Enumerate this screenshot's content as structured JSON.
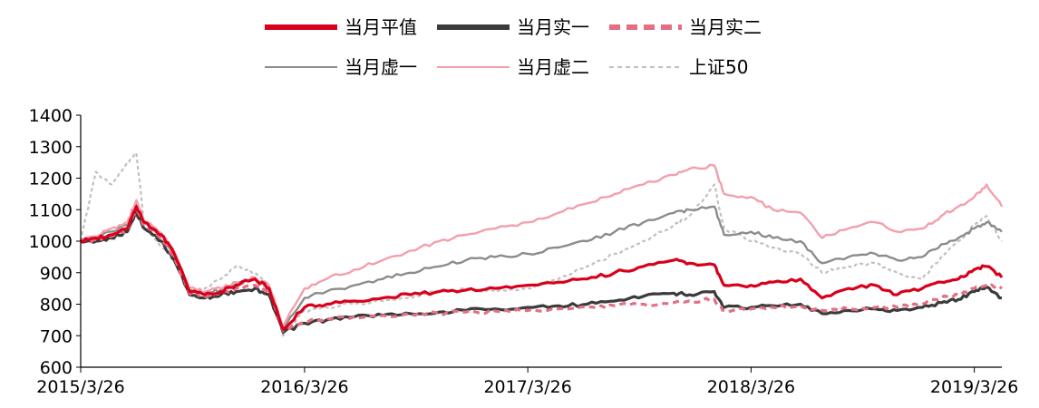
{
  "chart_data": {
    "type": "line",
    "title": "",
    "xlabel": "",
    "ylabel": "",
    "ylim": [
      600,
      1400
    ],
    "yticks": [
      600,
      700,
      800,
      900,
      1000,
      1100,
      1200,
      1300,
      1400
    ],
    "xlim": [
      "2015/3/26",
      "2019/5/10"
    ],
    "xtick_labels": [
      "2015/3/26",
      "2016/3/26",
      "2017/3/26",
      "2018/3/26",
      "2019/3/26"
    ],
    "legend_position": "top-center",
    "grid": false,
    "series": [
      {
        "name": "当月平值",
        "color": "#d9001b",
        "style": "solid-thick",
        "x": [
          "2015/3/26",
          "2015/4/20",
          "2015/5/15",
          "2015/6/10",
          "2015/6/25",
          "2015/7/8",
          "2015/8/5",
          "2015/8/26",
          "2015/9/20",
          "2015/10/15",
          "2015/11/10",
          "2015/12/5",
          "2016/1/5",
          "2016/1/28",
          "2016/2/20",
          "2016/3/26",
          "2016/5/1",
          "2016/6/15",
          "2016/8/1",
          "2016/9/15",
          "2016/11/1",
          "2016/12/15",
          "2017/2/1",
          "2017/3/26",
          "2017/5/15",
          "2017/7/1",
          "2017/8/15",
          "2017/10/1",
          "2017/11/20",
          "2017/12/15",
          "2018/1/25",
          "2018/2/10",
          "2018/3/26",
          "2018/5/1",
          "2018/6/15",
          "2018/7/20",
          "2018/9/1",
          "2018/10/15",
          "2018/11/20",
          "2018/12/31",
          "2019/1/31",
          "2019/2/28",
          "2019/3/26",
          "2019/4/15",
          "2019/5/10"
        ],
        "values": [
          1000,
          1010,
          1020,
          1040,
          1110,
          1060,
          1020,
          960,
          840,
          830,
          840,
          860,
          880,
          850,
          720,
          790,
          800,
          810,
          820,
          830,
          840,
          845,
          850,
          860,
          870,
          880,
          900,
          920,
          940,
          930,
          925,
          860,
          860,
          870,
          880,
          820,
          850,
          860,
          830,
          850,
          870,
          880,
          910,
          920,
          885
        ]
      },
      {
        "name": "当月实一",
        "color": "#3b3b3b",
        "style": "solid-thick",
        "x": [
          "2015/3/26",
          "2015/4/20",
          "2015/5/15",
          "2015/6/10",
          "2015/6/25",
          "2015/7/8",
          "2015/8/5",
          "2015/8/26",
          "2015/9/20",
          "2015/10/15",
          "2015/11/10",
          "2015/12/5",
          "2016/1/5",
          "2016/1/28",
          "2016/2/20",
          "2016/3/26",
          "2016/5/1",
          "2016/6/15",
          "2016/8/1",
          "2016/9/15",
          "2016/11/1",
          "2016/12/15",
          "2017/2/1",
          "2017/3/26",
          "2017/5/15",
          "2017/7/1",
          "2017/8/15",
          "2017/10/1",
          "2017/11/20",
          "2017/12/15",
          "2018/1/25",
          "2018/2/10",
          "2018/3/26",
          "2018/5/1",
          "2018/6/15",
          "2018/7/20",
          "2018/9/1",
          "2018/10/15",
          "2018/11/20",
          "2018/12/31",
          "2019/1/31",
          "2019/2/28",
          "2019/3/26",
          "2019/4/15",
          "2019/5/10"
        ],
        "values": [
          1000,
          1000,
          1010,
          1030,
          1090,
          1040,
          1000,
          940,
          830,
          820,
          830,
          840,
          850,
          830,
          710,
          740,
          750,
          760,
          765,
          770,
          775,
          780,
          785,
          790,
          795,
          800,
          810,
          825,
          835,
          830,
          840,
          790,
          790,
          795,
          800,
          770,
          780,
          785,
          780,
          790,
          805,
          815,
          840,
          855,
          820
        ]
      },
      {
        "name": "当月实二",
        "color": "#e36f84",
        "style": "dashed-thick",
        "x": [
          "2015/3/26",
          "2015/4/20",
          "2015/5/15",
          "2015/6/10",
          "2015/6/25",
          "2015/7/8",
          "2015/8/5",
          "2015/8/26",
          "2015/9/20",
          "2015/10/15",
          "2015/11/10",
          "2015/12/5",
          "2016/1/5",
          "2016/1/28",
          "2016/2/20",
          "2016/3/26",
          "2016/5/1",
          "2016/6/15",
          "2016/8/1",
          "2016/9/15",
          "2016/11/1",
          "2016/12/15",
          "2017/2/1",
          "2017/3/26",
          "2017/5/15",
          "2017/7/1",
          "2017/8/15",
          "2017/10/1",
          "2017/11/20",
          "2017/12/15",
          "2018/1/25",
          "2018/2/10",
          "2018/3/26",
          "2018/5/1",
          "2018/6/15",
          "2018/7/20",
          "2018/9/1",
          "2018/10/15",
          "2018/11/20",
          "2018/12/31",
          "2019/1/31",
          "2019/2/28",
          "2019/3/26",
          "2019/4/15",
          "2019/5/10"
        ],
        "values": [
          1000,
          1005,
          1015,
          1035,
          1100,
          1050,
          1010,
          950,
          835,
          825,
          835,
          850,
          860,
          840,
          715,
          745,
          755,
          760,
          765,
          768,
          772,
          775,
          778,
          780,
          785,
          790,
          795,
          800,
          805,
          810,
          815,
          780,
          785,
          790,
          795,
          780,
          785,
          790,
          790,
          800,
          820,
          830,
          850,
          860,
          850
        ]
      },
      {
        "name": "当月虚一",
        "color": "#8c8c8c",
        "style": "solid-thin",
        "x": [
          "2015/3/26",
          "2015/4/20",
          "2015/5/15",
          "2015/6/10",
          "2015/6/25",
          "2015/7/8",
          "2015/8/5",
          "2015/8/26",
          "2015/9/20",
          "2015/10/15",
          "2015/11/10",
          "2015/12/5",
          "2016/1/5",
          "2016/1/28",
          "2016/2/20",
          "2016/3/26",
          "2016/5/1",
          "2016/6/15",
          "2016/8/1",
          "2016/9/15",
          "2016/11/1",
          "2016/12/15",
          "2017/2/1",
          "2017/3/26",
          "2017/5/15",
          "2017/7/1",
          "2017/8/15",
          "2017/10/1",
          "2017/11/20",
          "2017/12/15",
          "2018/1/25",
          "2018/2/10",
          "2018/3/26",
          "2018/5/1",
          "2018/6/15",
          "2018/7/20",
          "2018/9/1",
          "2018/10/15",
          "2018/11/20",
          "2018/12/31",
          "2019/1/31",
          "2019/2/28",
          "2019/3/26",
          "2019/4/15",
          "2019/5/10"
        ],
        "values": [
          1000,
          1010,
          1030,
          1050,
          1120,
          1060,
          1020,
          960,
          845,
          835,
          845,
          865,
          880,
          855,
          725,
          820,
          840,
          860,
          880,
          900,
          920,
          940,
          950,
          960,
          980,
          1000,
          1030,
          1060,
          1090,
          1100,
          1110,
          1020,
          1030,
          1010,
          1000,
          930,
          950,
          960,
          940,
          950,
          990,
          1010,
          1040,
          1060,
          1030
        ]
      },
      {
        "name": "当月虚二",
        "color": "#f2a0ac",
        "style": "solid-thin",
        "x": [
          "2015/3/26",
          "2015/4/20",
          "2015/5/15",
          "2015/6/10",
          "2015/6/25",
          "2015/7/8",
          "2015/8/5",
          "2015/8/26",
          "2015/9/20",
          "2015/10/15",
          "2015/11/10",
          "2015/12/5",
          "2016/1/5",
          "2016/1/28",
          "2016/2/20",
          "2016/3/26",
          "2016/5/1",
          "2016/6/15",
          "2016/8/1",
          "2016/9/15",
          "2016/11/1",
          "2016/12/15",
          "2017/2/1",
          "2017/3/26",
          "2017/5/15",
          "2017/7/1",
          "2017/8/15",
          "2017/10/1",
          "2017/11/20",
          "2017/12/15",
          "2018/1/25",
          "2018/2/10",
          "2018/3/26",
          "2018/5/1",
          "2018/6/15",
          "2018/7/20",
          "2018/9/1",
          "2018/10/15",
          "2018/11/20",
          "2018/12/31",
          "2019/1/31",
          "2019/2/28",
          "2019/3/26",
          "2019/4/15",
          "2019/5/10"
        ],
        "values": [
          1000,
          1015,
          1040,
          1060,
          1130,
          1065,
          1025,
          965,
          850,
          840,
          850,
          870,
          885,
          860,
          730,
          850,
          880,
          910,
          940,
          970,
          1000,
          1020,
          1040,
          1060,
          1090,
          1120,
          1150,
          1180,
          1210,
          1230,
          1240,
          1150,
          1140,
          1100,
          1090,
          1010,
          1040,
          1060,
          1030,
          1040,
          1080,
          1110,
          1140,
          1180,
          1110
        ]
      },
      {
        "name": "上证50",
        "color": "#c0c0c0",
        "style": "dashed-thin",
        "x": [
          "2015/3/26",
          "2015/4/20",
          "2015/5/15",
          "2015/6/10",
          "2015/6/25",
          "2015/7/8",
          "2015/8/5",
          "2015/8/26",
          "2015/9/20",
          "2015/10/15",
          "2015/11/10",
          "2015/12/5",
          "2016/1/5",
          "2016/1/28",
          "2016/2/20",
          "2016/3/26",
          "2016/5/1",
          "2016/6/15",
          "2016/8/1",
          "2016/9/15",
          "2016/11/1",
          "2016/12/15",
          "2017/2/1",
          "2017/3/26",
          "2017/5/15",
          "2017/7/1",
          "2017/8/15",
          "2017/10/1",
          "2017/11/20",
          "2017/12/15",
          "2018/1/25",
          "2018/2/10",
          "2018/3/26",
          "2018/5/1",
          "2018/6/15",
          "2018/7/20",
          "2018/9/1",
          "2018/10/15",
          "2018/11/20",
          "2018/12/31",
          "2019/1/31",
          "2019/2/28",
          "2019/3/26",
          "2019/4/15",
          "2019/5/10"
        ],
        "values": [
          1000,
          1220,
          1180,
          1250,
          1280,
          1050,
          980,
          940,
          840,
          850,
          880,
          920,
          900,
          860,
          700,
          780,
          790,
          800,
          810,
          820,
          840,
          850,
          840,
          850,
          880,
          920,
          960,
          1000,
          1050,
          1080,
          1180,
          1040,
          1000,
          980,
          960,
          900,
          920,
          930,
          900,
          880,
          950,
          1000,
          1050,
          1080,
          1000
        ]
      }
    ]
  }
}
